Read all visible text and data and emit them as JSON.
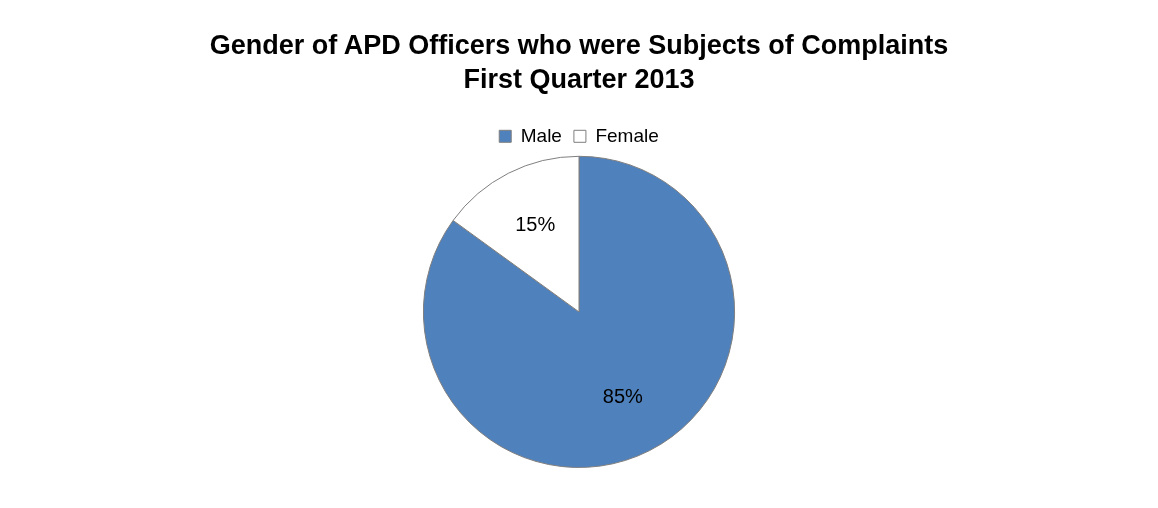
{
  "chart_data": {
    "type": "pie",
    "title": "Gender of APD Officers who were Subjects of Complaints",
    "subtitle": "First Quarter 2013",
    "categories": [
      "Male",
      "Female"
    ],
    "values": [
      85,
      15
    ],
    "colors": [
      "#4f81bd",
      "#ffffff"
    ],
    "value_labels": [
      "85%",
      "15%"
    ],
    "legend": "top"
  }
}
